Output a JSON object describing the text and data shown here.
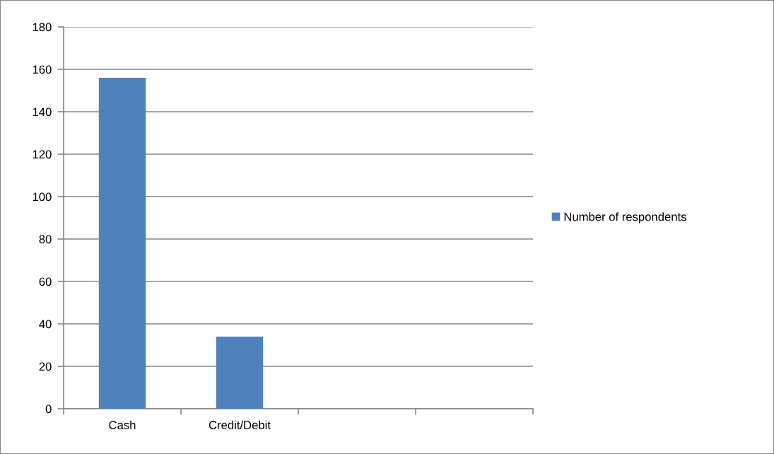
{
  "chart_data": {
    "type": "bar",
    "categories": [
      "Cash",
      "Credit/Debit",
      null,
      null
    ],
    "series": [
      {
        "name": "Number of respondents",
        "color": "#4f81bd",
        "values": [
          156,
          34,
          null,
          null
        ]
      }
    ],
    "ylim": [
      0,
      180
    ],
    "yticks": [
      0,
      20,
      40,
      60,
      80,
      100,
      120,
      140,
      160,
      180
    ],
    "grid": "y",
    "legend": "right"
  }
}
